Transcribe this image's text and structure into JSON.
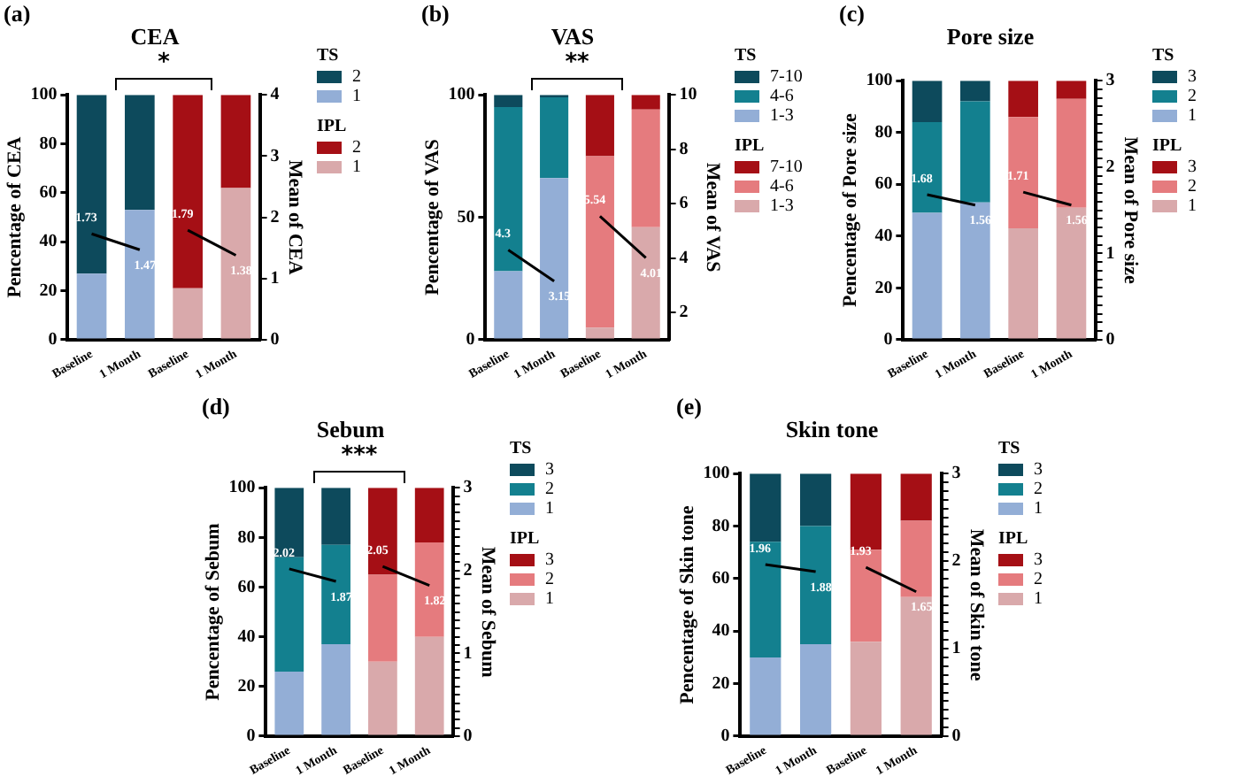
{
  "chart_data": [
    {
      "type": "bar",
      "title": "CEA",
      "ylabel": "Pencentage of CEA",
      "y2label": "Mean of CEA",
      "stacked": true,
      "legend": "right",
      "legend_title": [
        "TS",
        "IPL"
      ],
      "annotations": [
        "(a)",
        "*"
      ],
      "categories": [
        "Baseline",
        "1 Month",
        "Baseline",
        "1 Month"
      ],
      "ylim": [
        0,
        100
      ],
      "yticks": [
        0,
        20,
        40,
        60,
        80,
        100
      ],
      "y2lim": [
        0,
        4
      ],
      "y2ticks": [
        0,
        1,
        2,
        3,
        4
      ],
      "series": [
        {
          "name": "1",
          "color": "#93aed6",
          "values": [
            27,
            53,
            null,
            null
          ]
        },
        {
          "name": "2",
          "color": "#0d4a5c",
          "values": [
            73,
            47,
            null,
            null
          ]
        },
        {
          "name": "1",
          "color": "#d9a9ab",
          "values": [
            null,
            null,
            21,
            62
          ]
        },
        {
          "name": "2",
          "color": "#a50f15",
          "values": [
            null,
            null,
            79,
            38
          ]
        },
        {
          "type": "line",
          "axis": "y2",
          "color": "#000000",
          "values": [
            1.73,
            1.47,
            null,
            null
          ],
          "value_labels": [
            "1.73",
            "1.47",
            null,
            null
          ]
        },
        {
          "type": "line",
          "axis": "y2",
          "color": "#000000",
          "values": [
            null,
            null,
            1.79,
            1.38
          ],
          "value_labels": [
            null,
            null,
            "1.79",
            "1.38"
          ]
        }
      ]
    },
    {
      "type": "bar",
      "title": "VAS",
      "ylabel": "Pencentage of VAS",
      "y2label": "Mean of VAS",
      "stacked": true,
      "legend": "right",
      "legend_title": [
        "TS",
        "IPL"
      ],
      "annotations": [
        "(b)",
        "**"
      ],
      "categories": [
        "Baseline",
        "1 Month",
        "Baseline",
        "1 Month"
      ],
      "ylim": [
        0,
        100
      ],
      "yticks": [
        0,
        50,
        100
      ],
      "y2lim": [
        1,
        10
      ],
      "y2ticks": [
        2,
        4,
        6,
        8,
        10
      ],
      "series": [
        {
          "name": "1-3",
          "color": "#93aed6",
          "values": [
            28,
            66,
            null,
            null
          ]
        },
        {
          "name": "4-6",
          "color": "#13808f",
          "values": [
            67,
            33,
            null,
            null
          ]
        },
        {
          "name": "7-10",
          "color": "#0d4a5c",
          "values": [
            5,
            1,
            null,
            null
          ]
        },
        {
          "name": "1-3",
          "color": "#d9a9ab",
          "values": [
            null,
            null,
            5,
            46
          ]
        },
        {
          "name": "4-6",
          "color": "#e57b7e",
          "values": [
            null,
            null,
            70,
            48
          ]
        },
        {
          "name": "7-10",
          "color": "#a50f15",
          "values": [
            null,
            null,
            25,
            6
          ]
        },
        {
          "type": "line",
          "axis": "y2",
          "color": "#000000",
          "values": [
            4.3,
            3.15,
            null,
            null
          ],
          "value_labels": [
            "4.3",
            "3.15",
            null,
            null
          ]
        },
        {
          "type": "line",
          "axis": "y2",
          "color": "#000000",
          "values": [
            null,
            null,
            5.54,
            4.01
          ],
          "value_labels": [
            null,
            null,
            "5.54",
            "4.01"
          ]
        }
      ]
    },
    {
      "type": "bar",
      "title": "Pore size",
      "ylabel": "Pencentage of Pore size",
      "y2label": "Mean of Pore size",
      "stacked": true,
      "legend": "right",
      "legend_title": [
        "TS",
        "IPL"
      ],
      "annotations": [
        "(c)"
      ],
      "categories": [
        "Baseline",
        "1 Month",
        "Baseline",
        "1 Month"
      ],
      "ylim": [
        0,
        100
      ],
      "yticks": [
        0,
        20,
        40,
        60,
        80,
        100
      ],
      "y2lim": [
        0,
        3
      ],
      "y2ticks": [
        0,
        {
          "value": 0.1,
          "label": null
        },
        {
          "value": 0.2,
          "label": null
        },
        {
          "value": 0.3,
          "label": null
        },
        {
          "value": 0.4,
          "label": null
        },
        {
          "value": 0.5,
          "label": null
        },
        {
          "value": 0.6,
          "label": null
        },
        {
          "value": 0.7,
          "label": null
        },
        {
          "value": 0.8,
          "label": null
        },
        {
          "value": 0.9,
          "label": null
        },
        1,
        {
          "value": 1.1,
          "label": null
        },
        {
          "value": 1.2,
          "label": null
        },
        {
          "value": 1.3,
          "label": null
        },
        {
          "value": 1.4,
          "label": null
        },
        {
          "value": 1.5,
          "label": null
        },
        {
          "value": 1.6,
          "label": null
        },
        {
          "value": 1.7,
          "label": null
        },
        {
          "value": 1.8,
          "label": null
        },
        {
          "value": 1.9,
          "label": null
        },
        2,
        {
          "value": 2.1,
          "label": null
        },
        {
          "value": 2.2,
          "label": null
        },
        {
          "value": 2.3,
          "label": null
        },
        {
          "value": 2.4,
          "label": null
        },
        {
          "value": 2.5,
          "label": null
        },
        {
          "value": 2.6,
          "label": null
        },
        {
          "value": 2.7,
          "label": null
        },
        {
          "value": 2.8,
          "label": null
        },
        {
          "value": 2.9,
          "label": null
        },
        3
      ],
      "series": [
        {
          "name": "1",
          "color": "#93aed6",
          "values": [
            49,
            53,
            null,
            null
          ]
        },
        {
          "name": "2",
          "color": "#13808f",
          "values": [
            35,
            39,
            null,
            null
          ]
        },
        {
          "name": "3",
          "color": "#0d4a5c",
          "values": [
            16,
            8,
            null,
            null
          ]
        },
        {
          "name": "1",
          "color": "#d9a9ab",
          "values": [
            null,
            null,
            43,
            51
          ]
        },
        {
          "name": "2",
          "color": "#e57b7e",
          "values": [
            null,
            null,
            43,
            42
          ]
        },
        {
          "name": "3",
          "color": "#a50f15",
          "values": [
            null,
            null,
            14,
            7
          ]
        },
        {
          "type": "line",
          "axis": "y2",
          "color": "#000000",
          "values": [
            1.68,
            1.56,
            null,
            null
          ],
          "value_labels": [
            "1.68",
            "1.56",
            null,
            null
          ]
        },
        {
          "type": "line",
          "axis": "y2",
          "color": "#000000",
          "values": [
            null,
            null,
            1.71,
            1.56
          ],
          "value_labels": [
            null,
            null,
            "1.71",
            "1.56"
          ]
        }
      ]
    },
    {
      "type": "bar",
      "title": "Sebum",
      "ylabel": "Pencentage of Sebum",
      "y2label": "Mean of Sebum",
      "stacked": true,
      "legend": "right",
      "legend_title": [
        "TS",
        "IPL"
      ],
      "annotations": [
        "(d)",
        "***"
      ],
      "categories": [
        "Baseline",
        "1 Month",
        "Baseline",
        "1 Month"
      ],
      "ylim": [
        0,
        100
      ],
      "yticks": [
        0,
        20,
        40,
        60,
        80,
        100
      ],
      "y2lim": [
        0,
        3
      ],
      "y2ticks": [
        0,
        {
          "value": 0.1,
          "label": null
        },
        {
          "value": 0.2,
          "label": null
        },
        {
          "value": 0.3,
          "label": null
        },
        {
          "value": 0.4,
          "label": null
        },
        {
          "value": 0.5,
          "label": null
        },
        {
          "value": 0.6,
          "label": null
        },
        {
          "value": 0.7,
          "label": null
        },
        {
          "value": 0.8,
          "label": null
        },
        {
          "value": 0.9,
          "label": null
        },
        1,
        {
          "value": 1.1,
          "label": null
        },
        {
          "value": 1.2,
          "label": null
        },
        {
          "value": 1.3,
          "label": null
        },
        {
          "value": 1.4,
          "label": null
        },
        {
          "value": 1.5,
          "label": null
        },
        {
          "value": 1.6,
          "label": null
        },
        {
          "value": 1.7,
          "label": null
        },
        {
          "value": 1.8,
          "label": null
        },
        {
          "value": 1.9,
          "label": null
        },
        2,
        {
          "value": 2.1,
          "label": null
        },
        {
          "value": 2.2,
          "label": null
        },
        {
          "value": 2.3,
          "label": null
        },
        {
          "value": 2.4,
          "label": null
        },
        {
          "value": 2.5,
          "label": null
        },
        {
          "value": 2.6,
          "label": null
        },
        {
          "value": 2.7,
          "label": null
        },
        {
          "value": 2.8,
          "label": null
        },
        {
          "value": 2.9,
          "label": null
        },
        3
      ],
      "series": [
        {
          "name": "1",
          "color": "#93aed6",
          "values": [
            26,
            37,
            null,
            null
          ]
        },
        {
          "name": "2",
          "color": "#13808f",
          "values": [
            46,
            40,
            null,
            null
          ]
        },
        {
          "name": "3",
          "color": "#0d4a5c",
          "values": [
            28,
            23,
            null,
            null
          ]
        },
        {
          "name": "1",
          "color": "#d9a9ab",
          "values": [
            null,
            null,
            30,
            40
          ]
        },
        {
          "name": "2",
          "color": "#e57b7e",
          "values": [
            null,
            null,
            35,
            38
          ]
        },
        {
          "name": "3",
          "color": "#a50f15",
          "values": [
            null,
            null,
            35,
            22
          ]
        },
        {
          "type": "line",
          "axis": "y2",
          "color": "#000000",
          "values": [
            2.02,
            1.87,
            null,
            null
          ],
          "value_labels": [
            "2.02",
            "1.87",
            null,
            null
          ]
        },
        {
          "type": "line",
          "axis": "y2",
          "color": "#000000",
          "values": [
            null,
            null,
            2.05,
            1.82
          ],
          "value_labels": [
            null,
            null,
            "2.05",
            "1.82"
          ]
        }
      ]
    },
    {
      "type": "bar",
      "title": "Skin tone",
      "ylabel": "Pencentage of Skin tone",
      "y2label": "Mean of Skin tone",
      "stacked": true,
      "legend": "right",
      "legend_title": [
        "TS",
        "IPL"
      ],
      "annotations": [
        "(e)"
      ],
      "categories": [
        "Baseline",
        "1 Month",
        "Baseline",
        "1 Month"
      ],
      "ylim": [
        0,
        100
      ],
      "yticks": [
        0,
        20,
        40,
        60,
        80,
        100
      ],
      "y2lim": [
        0,
        3
      ],
      "y2ticks": [
        0,
        {
          "value": 0.1,
          "label": null
        },
        {
          "value": 0.2,
          "label": null
        },
        {
          "value": 0.3,
          "label": null
        },
        {
          "value": 0.4,
          "label": null
        },
        {
          "value": 0.5,
          "label": null
        },
        {
          "value": 0.6,
          "label": null
        },
        {
          "value": 0.7,
          "label": null
        },
        {
          "value": 0.8,
          "label": null
        },
        {
          "value": 0.9,
          "label": null
        },
        1,
        {
          "value": 1.1,
          "label": null
        },
        {
          "value": 1.2,
          "label": null
        },
        {
          "value": 1.3,
          "label": null
        },
        {
          "value": 1.4,
          "label": null
        },
        {
          "value": 1.5,
          "label": null
        },
        {
          "value": 1.6,
          "label": null
        },
        {
          "value": 1.7,
          "label": null
        },
        {
          "value": 1.8,
          "label": null
        },
        {
          "value": 1.9,
          "label": null
        },
        2,
        {
          "value": 2.1,
          "label": null
        },
        {
          "value": 2.2,
          "label": null
        },
        {
          "value": 2.3,
          "label": null
        },
        {
          "value": 2.4,
          "label": null
        },
        {
          "value": 2.5,
          "label": null
        },
        {
          "value": 2.6,
          "label": null
        },
        {
          "value": 2.7,
          "label": null
        },
        {
          "value": 2.8,
          "label": null
        },
        {
          "value": 2.9,
          "label": null
        },
        3
      ],
      "series": [
        {
          "name": "1",
          "color": "#93aed6",
          "values": [
            30,
            35,
            null,
            null
          ]
        },
        {
          "name": "2",
          "color": "#13808f",
          "values": [
            44,
            45,
            null,
            null
          ]
        },
        {
          "name": "3",
          "color": "#0d4a5c",
          "values": [
            26,
            20,
            null,
            null
          ]
        },
        {
          "name": "1",
          "color": "#d9a9ab",
          "values": [
            null,
            null,
            36,
            53
          ]
        },
        {
          "name": "2",
          "color": "#e57b7e",
          "values": [
            null,
            null,
            35,
            29
          ]
        },
        {
          "name": "3",
          "color": "#a50f15",
          "values": [
            null,
            null,
            29,
            18
          ]
        },
        {
          "type": "line",
          "axis": "y2",
          "color": "#000000",
          "values": [
            1.96,
            1.88,
            null,
            null
          ],
          "value_labels": [
            "1.96",
            "1.88",
            null,
            null
          ]
        },
        {
          "type": "line",
          "axis": "y2",
          "color": "#000000",
          "values": [
            null,
            null,
            1.93,
            1.65
          ],
          "value_labels": [
            null,
            null,
            "1.93",
            "1.65"
          ]
        }
      ]
    }
  ]
}
